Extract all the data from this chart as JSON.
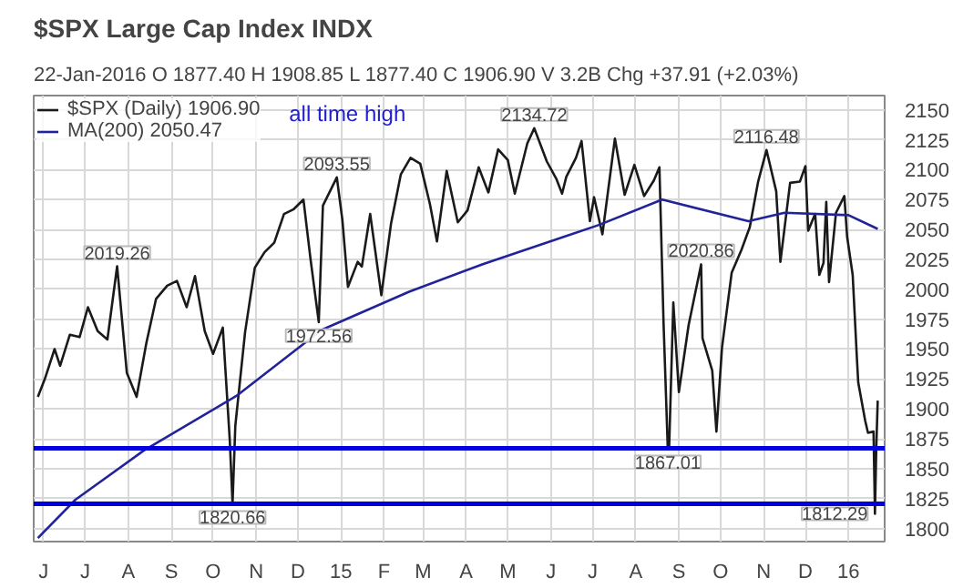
{
  "chart_data": {
    "type": "line",
    "title": "$SPX Large Cap Index INDX",
    "subtitle": "22-Jan-2016   O 1877.40  H 1908.85  L 1877.40  C 1906.90  V 3.2B  Chg +37.91 (+2.03%)",
    "series": [
      {
        "name": "$SPX (Daily) 1906.90",
        "color": "#1a1a1a",
        "x": [
          "2014-05-28",
          "2014-06-02",
          "2014-06-09",
          "2014-06-13",
          "2014-06-20",
          "2014-06-27",
          "2014-07-03",
          "2014-07-10",
          "2014-07-17",
          "2014-07-24",
          "2014-07-31",
          "2014-08-07",
          "2014-08-14",
          "2014-08-21",
          "2014-08-29",
          "2014-09-05",
          "2014-09-12",
          "2014-09-18",
          "2014-09-25",
          "2014-10-01",
          "2014-10-08",
          "2014-10-13",
          "2014-10-15",
          "2014-10-17",
          "2014-10-24",
          "2014-10-31",
          "2014-11-07",
          "2014-11-14",
          "2014-11-21",
          "2014-11-28",
          "2014-12-05",
          "2014-12-10",
          "2014-12-16",
          "2014-12-19",
          "2014-12-29",
          "2015-01-02",
          "2015-01-06",
          "2015-01-13",
          "2015-01-16",
          "2015-01-22",
          "2015-01-30",
          "2015-02-06",
          "2015-02-13",
          "2015-02-20",
          "2015-02-27",
          "2015-03-06",
          "2015-03-11",
          "2015-03-18",
          "2015-03-26",
          "2015-04-02",
          "2015-04-10",
          "2015-04-17",
          "2015-04-24",
          "2015-05-01",
          "2015-05-06",
          "2015-05-15",
          "2015-05-20",
          "2015-05-29",
          "2015-06-05",
          "2015-06-09",
          "2015-06-12",
          "2015-06-19",
          "2015-06-23",
          "2015-06-29",
          "2015-07-02",
          "2015-07-08",
          "2015-07-17",
          "2015-07-24",
          "2015-07-31",
          "2015-08-07",
          "2015-08-14",
          "2015-08-18",
          "2015-08-21",
          "2015-08-24",
          "2015-08-25",
          "2015-08-28",
          "2015-09-01",
          "2015-09-08",
          "2015-09-17",
          "2015-09-18",
          "2015-09-25",
          "2015-09-28",
          "2015-10-02",
          "2015-10-09",
          "2015-10-16",
          "2015-10-22",
          "2015-10-28",
          "2015-11-03",
          "2015-11-10",
          "2015-11-13",
          "2015-11-20",
          "2015-11-27",
          "2015-12-01",
          "2015-12-03",
          "2015-12-08",
          "2015-12-11",
          "2015-12-14",
          "2015-12-16",
          "2015-12-18",
          "2015-12-23",
          "2015-12-29",
          "2015-12-31",
          "2016-01-04",
          "2016-01-07",
          "2016-01-08",
          "2016-01-13",
          "2016-01-15",
          "2016-01-19",
          "2016-01-20",
          "2016-01-21",
          "2016-01-22"
        ],
        "values": [
          1910,
          1925,
          1950,
          1936,
          1962,
          1960,
          1985,
          1965,
          1958,
          2019.26,
          1930,
          1910,
          1955,
          1992,
          2003,
          2007,
          1985,
          2011,
          1965,
          1946,
          1968,
          1874,
          1820.66,
          1886,
          1964,
          2018,
          2031,
          2039,
          2063,
          2067,
          2075,
          2026,
          1972.56,
          2070,
          2093.55,
          2058,
          2002,
          2023,
          2019,
          2063,
          1995,
          2055,
          2096,
          2110,
          2105,
          2071,
          2040,
          2099,
          2056,
          2066,
          2102,
          2081,
          2117,
          2108,
          2080,
          2122,
          2134.72,
          2107,
          2092,
          2080,
          2094,
          2110,
          2124,
          2057,
          2077,
          2046,
          2126,
          2079,
          2104,
          2078,
          2091,
          2102,
          1971,
          1867.01,
          1868,
          1989,
          1914,
          1970,
          2020.86,
          1959,
          1932,
          1881,
          1951,
          2014,
          2033,
          2052,
          2090,
          2116.48,
          2082,
          2023,
          2089,
          2090,
          2103,
          2049,
          2063,
          2012,
          2022,
          2073,
          2006,
          2064,
          2078,
          2044,
          2012,
          1943,
          1922,
          1890,
          1880,
          1881,
          1812.29,
          1869,
          1906.9
        ]
      },
      {
        "name": "MA(200) 2050.47",
        "color": "#222299",
        "x": [
          "2014-05-28",
          "2014-06-24",
          "2014-08-12",
          "2014-10-18",
          "2014-12-18",
          "2015-02-19",
          "2015-04-13",
          "2015-07-06",
          "2015-08-20",
          "2015-10-21",
          "2015-11-16",
          "2016-01-01",
          "2016-01-22"
        ],
        "values": [
          1792,
          1824,
          1865,
          1911,
          1966,
          1998,
          2021,
          2054,
          2075,
          2057,
          2064,
          2062,
          2050.47
        ]
      }
    ],
    "xlim": [
      "2014-05-25",
      "2016-01-27"
    ],
    "xticks": [
      {
        "value": "2014-06-01",
        "label": "J"
      },
      {
        "value": "2014-07-01",
        "label": "J"
      },
      {
        "value": "2014-08-01",
        "label": "A"
      },
      {
        "value": "2014-09-01",
        "label": "S"
      },
      {
        "value": "2014-10-01",
        "label": "O"
      },
      {
        "value": "2014-11-01",
        "label": "N"
      },
      {
        "value": "2014-12-01",
        "label": "D"
      },
      {
        "value": "2015-01-01",
        "label": "15"
      },
      {
        "value": "2015-02-01",
        "label": "F"
      },
      {
        "value": "2015-03-01",
        "label": "M"
      },
      {
        "value": "2015-04-01",
        "label": "A"
      },
      {
        "value": "2015-05-01",
        "label": "M"
      },
      {
        "value": "2015-06-01",
        "label": "J"
      },
      {
        "value": "2015-07-01",
        "label": "J"
      },
      {
        "value": "2015-08-01",
        "label": "A"
      },
      {
        "value": "2015-09-01",
        "label": "S"
      },
      {
        "value": "2015-10-01",
        "label": "O"
      },
      {
        "value": "2015-11-01",
        "label": "N"
      },
      {
        "value": "2015-12-01",
        "label": "D"
      },
      {
        "value": "2016-01-01",
        "label": "16"
      }
    ],
    "ylim": [
      1789,
      2162
    ],
    "yticks": [
      1800,
      1825,
      1850,
      1875,
      1900,
      1925,
      1950,
      1975,
      2000,
      2025,
      2050,
      2075,
      2100,
      2125,
      2150
    ],
    "ref_lines": [
      {
        "axis": "y",
        "value": 1867.01,
        "color": "#0000dd"
      },
      {
        "axis": "y",
        "value": 1820.66,
        "color": "#0000dd"
      }
    ],
    "annotations": [
      {
        "text": "2019.26",
        "x": "2014-07-24",
        "y": 2019.26
      },
      {
        "text": "1820.66",
        "x": "2014-10-15",
        "y": 1820.66
      },
      {
        "text": "1972.56",
        "x": "2014-12-16",
        "y": 1972.56
      },
      {
        "text": "2093.55",
        "x": "2014-12-29",
        "y": 2093.55
      },
      {
        "text": "2134.72",
        "x": "2015-05-20",
        "y": 2134.72
      },
      {
        "text": "1867.01",
        "x": "2015-08-24",
        "y": 1867.01
      },
      {
        "text": "2020.86",
        "x": "2015-09-17",
        "y": 2020.86
      },
      {
        "text": "2116.48",
        "x": "2015-11-03",
        "y": 2116.48
      },
      {
        "text": "1812.29",
        "x": "2016-01-20",
        "y": 1812.29
      },
      "all time high"
    ],
    "grid": true,
    "legend": "top left"
  }
}
